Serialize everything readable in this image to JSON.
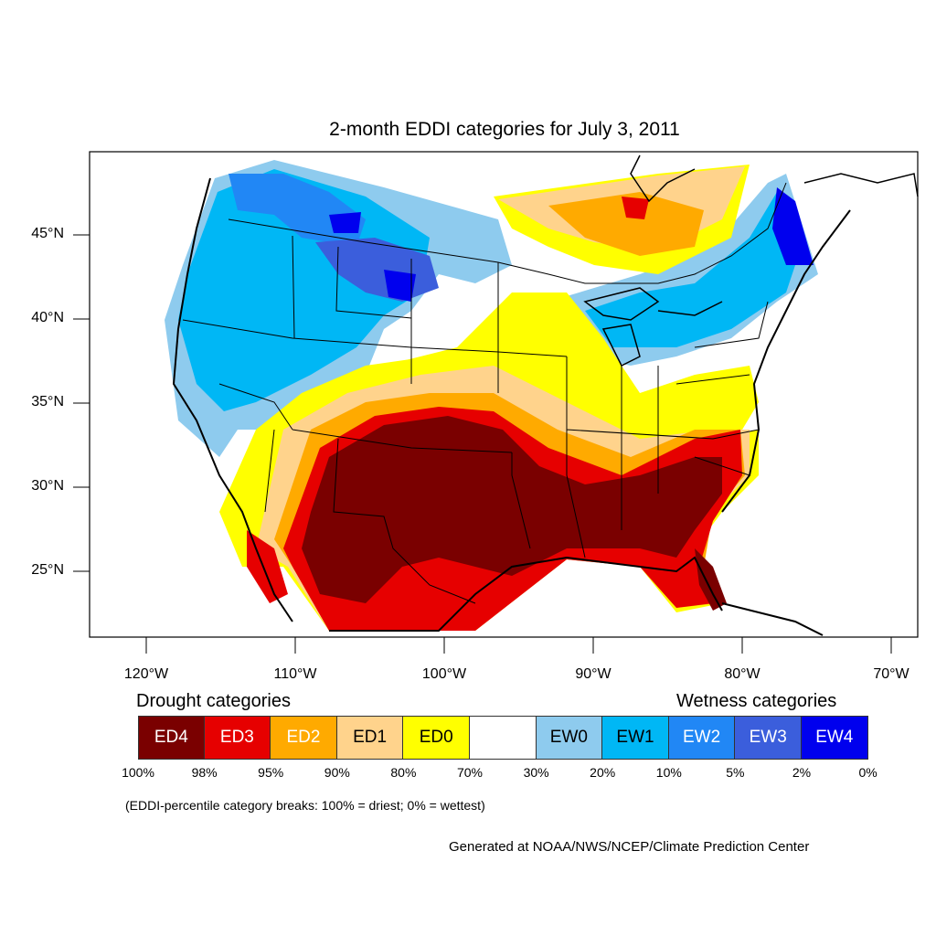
{
  "title": "2-month EDDI categories for July 3, 2011",
  "lat_labels": [
    "45°N",
    "40°N",
    "35°N",
    "30°N",
    "25°N"
  ],
  "lon_labels": [
    "120°W",
    "110°W",
    "100°W",
    "90°W",
    "80°W",
    "70°W"
  ],
  "legend": {
    "drought_label": "Drought categories",
    "wetness_label": "Wetness categories",
    "categories": [
      {
        "label": "ED4",
        "color": "#7a0000",
        "text_color": "#ffffff"
      },
      {
        "label": "ED3",
        "color": "#e60000",
        "text_color": "#ffffff"
      },
      {
        "label": "ED2",
        "color": "#ffaa00",
        "text_color": "#ffffff"
      },
      {
        "label": "ED1",
        "color": "#ffd38c",
        "text_color": "#000000"
      },
      {
        "label": "ED0",
        "color": "#ffff00",
        "text_color": "#000000"
      },
      {
        "label": "",
        "color": "#ffffff",
        "text_color": "#000000"
      },
      {
        "label": "EW0",
        "color": "#8ecbee",
        "text_color": "#000000"
      },
      {
        "label": "EW1",
        "color": "#00b7f5",
        "text_color": "#000000"
      },
      {
        "label": "EW2",
        "color": "#2187f5",
        "text_color": "#ffffff"
      },
      {
        "label": "EW3",
        "color": "#3b5edc",
        "text_color": "#ffffff"
      },
      {
        "label": "EW4",
        "color": "#0000ee",
        "text_color": "#ffffff"
      }
    ],
    "breaks": [
      "100%",
      "98%",
      "95%",
      "90%",
      "80%",
      "70%",
      "30%",
      "20%",
      "10%",
      "5%",
      "2%",
      "0%"
    ]
  },
  "note": "(EDDI-percentile category breaks: 100% = driest; 0% = wettest)",
  "credit": "Generated at NOAA/NWS/NCEP/Climate Prediction Center"
}
